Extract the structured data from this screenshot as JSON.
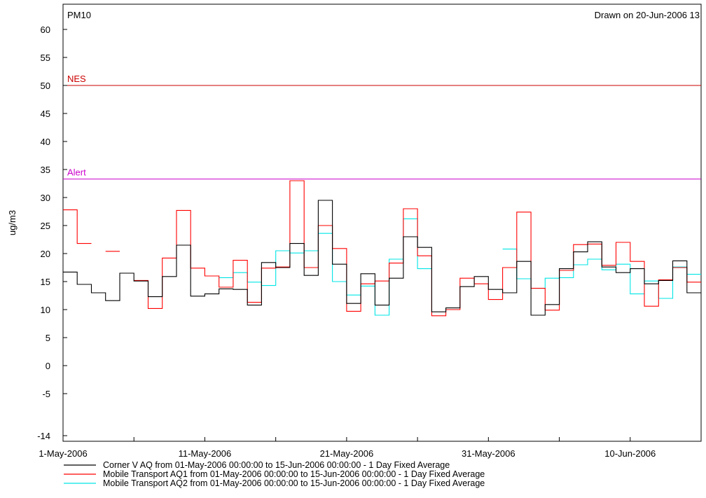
{
  "chart_data": {
    "type": "line",
    "step": true,
    "title": "PM10",
    "drawn_note": "Drawn on 20-Jun-2006 13",
    "ylabel": "ug/m3",
    "xlabel": "",
    "ylim": [
      -14,
      64
    ],
    "y_ticks": [
      "-14",
      "-5",
      "0",
      "5",
      "10",
      "15",
      "20",
      "25",
      "30",
      "35",
      "40",
      "45",
      "50",
      "55",
      "60"
    ],
    "x_range": [
      "2006-05-01",
      "2006-06-15"
    ],
    "x_ticks": [
      {
        "date": "2006-05-01",
        "label": "1-May-2006"
      },
      {
        "date": "2006-05-11",
        "label": "11-May-2006"
      },
      {
        "date": "2006-05-21",
        "label": "21-May-2006"
      },
      {
        "date": "2006-05-31",
        "label": "31-May-2006"
      },
      {
        "date": "2006-06-10",
        "label": "10-Jun-2006"
      }
    ],
    "grid": false,
    "reference_lines": [
      {
        "label": "NES",
        "value": 50,
        "color": "#cc0000"
      },
      {
        "label": "Alert",
        "value": 33.3,
        "color": "#cc00cc"
      }
    ],
    "series": [
      {
        "name": "Corner V AQ from 01-May-2006 00:00:00 to 15-Jun-2006 00:00:00 - 1 Day Fixed Average",
        "color": "#000000",
        "values": [
          16.7,
          14.5,
          13,
          11.6,
          16.5,
          15.1,
          12.3,
          15.9,
          21.5,
          12.4,
          12.8,
          13.7,
          13.6,
          10.8,
          18.4,
          17.5,
          21.8,
          16.1,
          29.5,
          18.1,
          11.1,
          16.4,
          10.8,
          15.6,
          23,
          21.1,
          9.6,
          10.3,
          14.1,
          15.9,
          13.6,
          13,
          18.6,
          9,
          10.9,
          17.3,
          20.3,
          22.1,
          17.6,
          16.6,
          17.3,
          14.6,
          15.2,
          18.7,
          13
        ]
      },
      {
        "name": "Mobile Transport AQ1 from 01-May-2006 00:00:00 to 15-Jun-2006 00:00:00 - 1 Day Fixed Average",
        "color": "#ff0000",
        "values": [
          27.8,
          21.8,
          null,
          20.4,
          null,
          15.2,
          10.2,
          19.2,
          27.7,
          17.4,
          16,
          14,
          18.8,
          11.3,
          17.4,
          17.6,
          33,
          17.5,
          25,
          20.9,
          9.7,
          14.6,
          15.1,
          18.3,
          28,
          19.6,
          8.9,
          10,
          15.6,
          14.6,
          11.8,
          17.5,
          27.4,
          13.8,
          9.9,
          17,
          21.6,
          21.7,
          17.9,
          22,
          18.6,
          10.6,
          15.3,
          17.5,
          14.9
        ]
      },
      {
        "name": "Mobile Transport AQ2 from 01-May-2006 00:00:00 to 15-Jun-2006 00:00:00 - 1 Day Fixed Average",
        "color": "#00e5e5",
        "values": [
          null,
          null,
          null,
          null,
          null,
          null,
          null,
          null,
          null,
          null,
          null,
          15.7,
          16.6,
          14.9,
          14.3,
          20.5,
          20.1,
          20.5,
          23.6,
          15,
          12.6,
          14.2,
          9,
          19,
          26.2,
          17.3,
          null,
          null,
          null,
          null,
          null,
          20.8,
          15.5,
          13.8,
          15.6,
          15.7,
          18,
          19,
          17.1,
          18.1,
          12.8,
          15.1,
          12,
          17.6,
          16.3
        ]
      }
    ]
  }
}
